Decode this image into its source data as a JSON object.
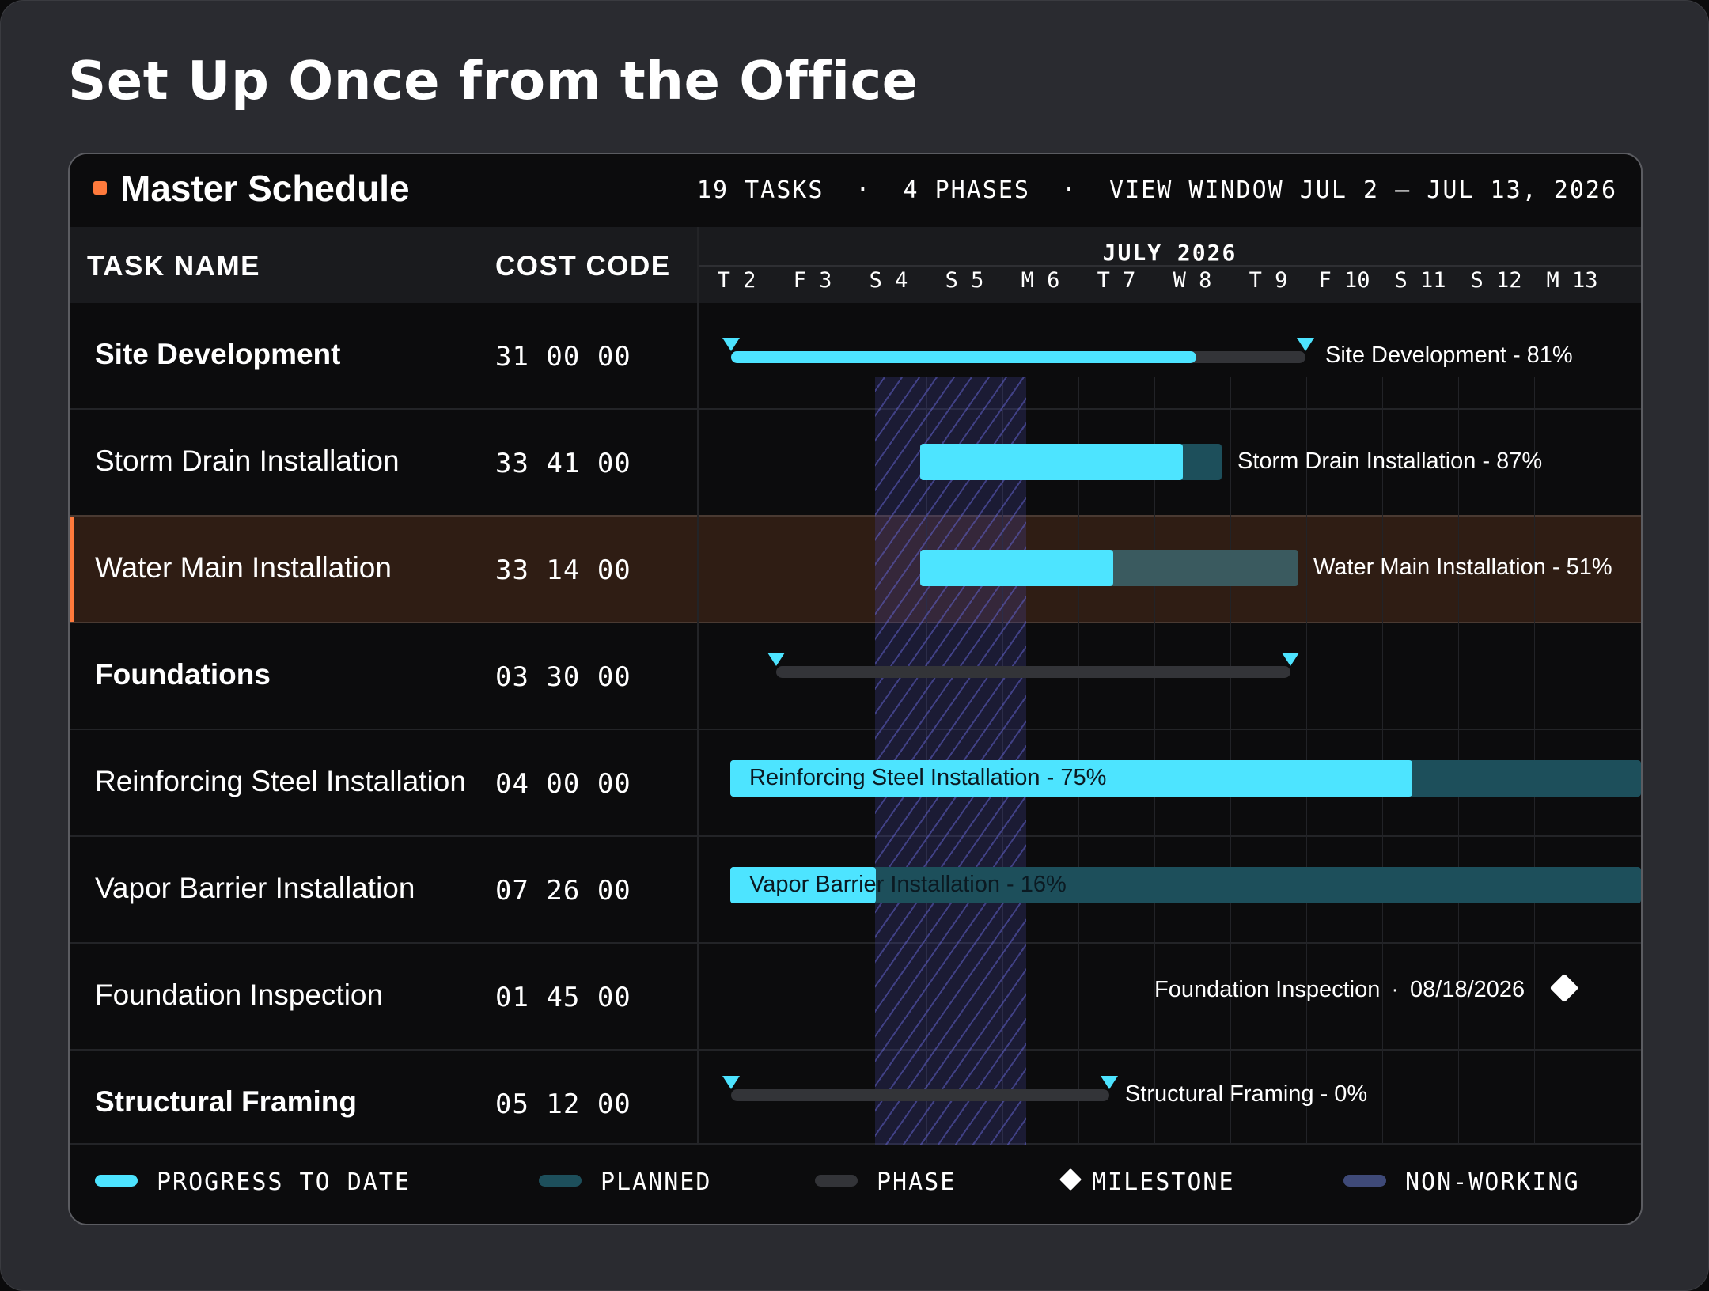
{
  "page": {
    "title": "Set Up Once from the Office"
  },
  "schedule": {
    "title": "Master Schedule",
    "stats": {
      "tasks": "19 TASKS",
      "phases": "4 PHASES",
      "separator": "·",
      "view_window": "VIEW WINDOW JUL 2 – JUL 13, 2026"
    },
    "columns": {
      "task_name": "TASK NAME",
      "cost_code": "COST CODE"
    },
    "month": "JULY 2026",
    "days": [
      "T 2",
      "F 3",
      "S 4",
      "S 5",
      "M 6",
      "T 7",
      "W 8",
      "T 9",
      "F 10",
      "S 11",
      "S 12",
      "M 13"
    ],
    "non_working_days": [
      "S 4",
      "S 5"
    ],
    "rows": [
      {
        "name": "Site Development",
        "cost_code": "31 00 00",
        "kind": "phase",
        "progress_pct": 81,
        "label": "Site Development - 81%",
        "highlighted": false
      },
      {
        "name": "Storm Drain Installation",
        "cost_code": "33 41 00",
        "kind": "task",
        "progress_pct": 87,
        "label": "Storm Drain Installation - 87%",
        "highlighted": false
      },
      {
        "name": "Water Main Installation",
        "cost_code": "33 14 00",
        "kind": "task",
        "progress_pct": 51,
        "label": "Water Main Installation - 51%",
        "highlighted": true
      },
      {
        "name": "Foundations",
        "cost_code": "03 30 00",
        "kind": "phase",
        "progress_pct": null,
        "label": "",
        "highlighted": false
      },
      {
        "name": "Reinforcing Steel Installation",
        "cost_code": "04 00 00",
        "kind": "task",
        "progress_pct": 75,
        "label": "Reinforcing Steel Installation - 75%",
        "highlighted": false
      },
      {
        "name": "Vapor Barrier Installation",
        "cost_code": "07 26 00",
        "kind": "task",
        "progress_pct": 16,
        "label": "Vapor Barrier Installation - 16%",
        "highlighted": false
      },
      {
        "name": "Foundation Inspection",
        "cost_code": "01 45 00",
        "kind": "milestone",
        "progress_pct": null,
        "label": "Foundation Inspection",
        "date": "08/18/2026",
        "highlighted": false
      },
      {
        "name": "Structural Framing",
        "cost_code": "05 12 00",
        "kind": "phase",
        "progress_pct": 0,
        "label": "Structural Framing - 0%",
        "highlighted": false
      }
    ],
    "legend": {
      "progress": "PROGRESS TO DATE",
      "planned": "PLANNED",
      "phase": "PHASE",
      "milestone": "MILESTONE",
      "non_working": "NON-WORKING"
    },
    "colors": {
      "progress": "#4de4ff",
      "planned": "#1d4f5b",
      "phase": "#333438",
      "accent": "#ff7a3c",
      "non_working": "#3f4a78",
      "highlight_row": "#2f1d14"
    }
  }
}
